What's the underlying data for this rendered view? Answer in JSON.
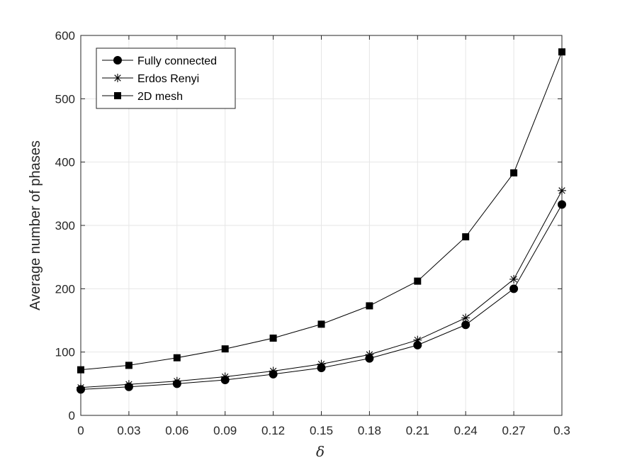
{
  "chart_data": {
    "type": "line",
    "title": "",
    "xlabel": "δ",
    "ylabel": "Average number of phases",
    "x": [
      0,
      0.03,
      0.06,
      0.09,
      0.12,
      0.15,
      0.18,
      0.21,
      0.24,
      0.27,
      0.3
    ],
    "x_tick_labels": [
      "0",
      "0.03",
      "0.06",
      "0.09",
      "0.12",
      "0.15",
      "0.18",
      "0.21",
      "0.24",
      "0.27",
      "0.3"
    ],
    "xlim": [
      0,
      0.3
    ],
    "ylim": [
      0,
      600
    ],
    "y_ticks": [
      0,
      100,
      200,
      300,
      400,
      500,
      600
    ],
    "y_tick_labels": [
      "0",
      "100",
      "200",
      "300",
      "400",
      "500",
      "600"
    ],
    "grid": true,
    "legend_position": "top-left",
    "series": [
      {
        "name": "Fully connected",
        "marker": "circle",
        "values": [
          41,
          45,
          50,
          56,
          65,
          75,
          90,
          111,
          143,
          200,
          333
        ]
      },
      {
        "name": "Erdos Renyi",
        "marker": "asterisk",
        "values": [
          44,
          49,
          54,
          61,
          70,
          81,
          96,
          119,
          154,
          215,
          355
        ]
      },
      {
        "name": "2D mesh",
        "marker": "square",
        "values": [
          72,
          79,
          91,
          105,
          122,
          144,
          173,
          212,
          282,
          383,
          574
        ]
      }
    ],
    "colors": {
      "line": "#000000",
      "grid": "#e6e6e6",
      "axis": "#262626"
    }
  }
}
